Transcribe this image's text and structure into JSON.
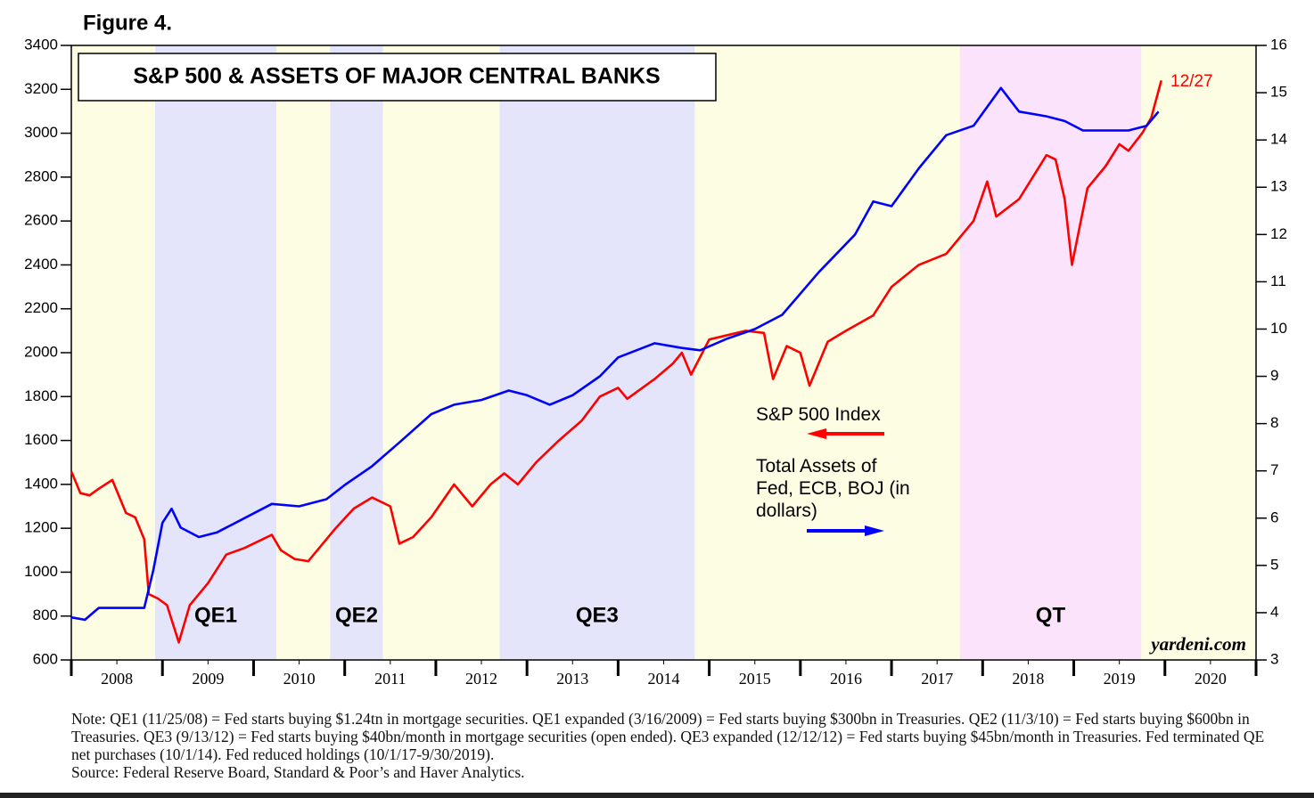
{
  "chart_data": {
    "type": "line",
    "figure_label": "Figure 4.",
    "title": "S&P 500 & ASSETS OF MAJOR CENTRAL BANKS",
    "xlim": [
      2008,
      2021
    ],
    "xticks": [
      {
        "value": 2008.5,
        "label": "2008"
      },
      {
        "value": 2009.5,
        "label": "2009"
      },
      {
        "value": 2010.5,
        "label": "2010"
      },
      {
        "value": 2011.5,
        "label": "2011"
      },
      {
        "value": 2012.5,
        "label": "2012"
      },
      {
        "value": 2013.5,
        "label": "2013"
      },
      {
        "value": 2014.5,
        "label": "2014"
      },
      {
        "value": 2015.5,
        "label": "2015"
      },
      {
        "value": 2016.5,
        "label": "2016"
      },
      {
        "value": 2017.5,
        "label": "2017"
      },
      {
        "value": 2018.5,
        "label": "2018"
      },
      {
        "value": 2019.5,
        "label": "2019"
      },
      {
        "value": 2020.5,
        "label": "2020"
      }
    ],
    "ylim": [
      600,
      3400
    ],
    "yticks": [
      600,
      800,
      1000,
      1200,
      1400,
      1600,
      1800,
      2000,
      2200,
      2400,
      2600,
      2800,
      3000,
      3200,
      3400
    ],
    "y2lim": [
      3,
      16
    ],
    "y2ticks": [
      3,
      4,
      5,
      6,
      7,
      8,
      9,
      10,
      11,
      12,
      13,
      14,
      15,
      16
    ],
    "background_color": "#fdfde3",
    "shaded_regions": [
      {
        "label": "QE1",
        "start": 2008.92,
        "end": 2010.25,
        "color": "#e4e4fa"
      },
      {
        "label": "QE2",
        "start": 2010.84,
        "end": 2011.42,
        "color": "#e4e4fa"
      },
      {
        "label": "QE3",
        "start": 2012.7,
        "end": 2014.84,
        "color": "#e4e4fa"
      },
      {
        "label": "QT",
        "start": 2017.75,
        "end": 2019.74,
        "color": "#fbe3fb"
      }
    ],
    "series": [
      {
        "name": "S&P 500 Index",
        "color": "#ff0000",
        "axis": "y",
        "x": [
          2008.0,
          2008.1,
          2008.2,
          2008.3,
          2008.45,
          2008.6,
          2008.7,
          2008.8,
          2008.85,
          2008.95,
          2009.05,
          2009.18,
          2009.3,
          2009.5,
          2009.7,
          2009.9,
          2010.2,
          2010.3,
          2010.45,
          2010.6,
          2010.9,
          2011.1,
          2011.3,
          2011.5,
          2011.6,
          2011.75,
          2011.95,
          2012.2,
          2012.4,
          2012.6,
          2012.75,
          2012.9,
          2013.1,
          2013.35,
          2013.6,
          2013.8,
          2014.0,
          2014.1,
          2014.4,
          2014.6,
          2014.7,
          2014.8,
          2015.0,
          2015.2,
          2015.4,
          2015.6,
          2015.7,
          2015.85,
          2016.0,
          2016.1,
          2016.3,
          2016.5,
          2016.8,
          2017.0,
          2017.3,
          2017.6,
          2017.9,
          2018.05,
          2018.15,
          2018.4,
          2018.7,
          2018.8,
          2018.9,
          2018.98,
          2019.15,
          2019.35,
          2019.5,
          2019.6,
          2019.75,
          2019.85,
          2019.96
        ],
        "values": [
          1460,
          1360,
          1350,
          1380,
          1420,
          1270,
          1250,
          1150,
          900,
          880,
          850,
          680,
          850,
          950,
          1080,
          1110,
          1170,
          1100,
          1060,
          1050,
          1200,
          1290,
          1340,
          1300,
          1130,
          1160,
          1250,
          1400,
          1300,
          1400,
          1450,
          1400,
          1500,
          1600,
          1690,
          1800,
          1840,
          1790,
          1880,
          1950,
          2000,
          1900,
          2060,
          2080,
          2100,
          2090,
          1880,
          2030,
          2000,
          1850,
          2050,
          2100,
          2170,
          2300,
          2400,
          2450,
          2600,
          2780,
          2620,
          2700,
          2900,
          2880,
          2700,
          2400,
          2750,
          2850,
          2950,
          2920,
          3000,
          3070,
          3240
        ]
      },
      {
        "name": "Total Assets of Fed, ECB, BOJ (in dollars)",
        "color": "#0000ff",
        "axis": "y2",
        "x": [
          2008.0,
          2008.15,
          2008.3,
          2008.5,
          2008.7,
          2008.8,
          2008.9,
          2009.0,
          2009.1,
          2009.2,
          2009.4,
          2009.6,
          2009.9,
          2010.2,
          2010.5,
          2010.8,
          2011.0,
          2011.3,
          2011.6,
          2011.95,
          2012.2,
          2012.5,
          2012.8,
          2013.0,
          2013.25,
          2013.5,
          2013.8,
          2014.0,
          2014.4,
          2014.7,
          2014.9,
          2015.2,
          2015.5,
          2015.8,
          2016.2,
          2016.6,
          2016.8,
          2017.0,
          2017.3,
          2017.6,
          2017.9,
          2018.2,
          2018.4,
          2018.7,
          2018.9,
          2019.1,
          2019.4,
          2019.6,
          2019.8,
          2019.93
        ],
        "values": [
          3.9,
          3.85,
          4.1,
          4.1,
          4.1,
          4.1,
          4.9,
          5.9,
          6.2,
          5.8,
          5.6,
          5.7,
          6.0,
          6.3,
          6.25,
          6.4,
          6.7,
          7.1,
          7.6,
          8.2,
          8.4,
          8.5,
          8.7,
          8.6,
          8.4,
          8.6,
          9.0,
          9.4,
          9.7,
          9.6,
          9.55,
          9.8,
          10.0,
          10.3,
          11.2,
          12.0,
          12.7,
          12.6,
          13.4,
          14.1,
          14.3,
          15.1,
          14.6,
          14.5,
          14.4,
          14.2,
          14.2,
          14.2,
          14.3,
          14.6
        ]
      }
    ],
    "annotations": {
      "end_date": "12/27",
      "source_site": "yardeni.com"
    },
    "note": "Note: QE1 (11/25/08) = Fed starts buying $1.24tn in mortgage securities. QE1 expanded (3/16/2009) = Fed starts buying $300bn in Treasuries. QE2 (11/3/10) = Fed starts buying $600bn in Treasuries. QE3 (9/13/12) = Fed starts buying $40bn/month in mortgage securities (open ended). QE3 expanded (12/12/12) = Fed starts buying $45bn/month in Treasuries. Fed terminated QE net purchases (10/1/14). Fed reduced holdings (10/1/17-9/30/2019).",
    "source": "Source: Federal Reserve Board, Standard & Poor’s and Haver Analytics."
  }
}
